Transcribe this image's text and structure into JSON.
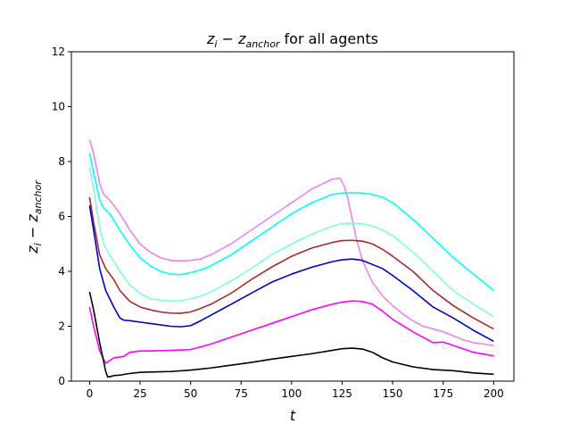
{
  "chart_data": {
    "type": "line",
    "title_parts": {
      "z_base": "z",
      "i_sub": "i",
      "minus": " − ",
      "anchor_sub": "anchor",
      "suffix": " for all agents"
    },
    "xlabel": "t",
    "ylabel_parts": {
      "z_base": "z",
      "i_sub": "i",
      "minus": " − ",
      "anchor_sub": "anchor"
    },
    "xlim": [
      -9,
      210
    ],
    "ylim": [
      0,
      12
    ],
    "xticks": [
      0,
      25,
      50,
      75,
      100,
      125,
      150,
      175,
      200
    ],
    "yticks": [
      0,
      2,
      4,
      6,
      8,
      10,
      12
    ],
    "grid": false,
    "series": [
      {
        "color": "#ee82ee",
        "x": [
          0,
          2,
          5,
          7,
          10,
          15,
          20,
          25,
          30,
          35,
          40,
          45,
          50,
          55,
          60,
          70,
          80,
          90,
          100,
          110,
          120,
          124,
          126,
          128,
          130,
          132,
          135,
          140,
          145,
          150,
          155,
          160,
          165,
          170,
          175,
          180,
          185,
          190,
          195,
          200
        ],
        "y": [
          8.8,
          8.3,
          7.2,
          6.8,
          6.6,
          6.1,
          5.5,
          5.0,
          4.7,
          4.5,
          4.4,
          4.38,
          4.4,
          4.45,
          4.6,
          5.0,
          5.5,
          6.0,
          6.5,
          7.0,
          7.35,
          7.4,
          7.1,
          6.6,
          5.9,
          5.2,
          4.4,
          3.6,
          3.1,
          2.75,
          2.45,
          2.2,
          2.0,
          1.9,
          1.8,
          1.65,
          1.5,
          1.4,
          1.35,
          1.3
        ]
      },
      {
        "color": "#00ffff",
        "x": [
          0,
          2,
          5,
          7,
          10,
          15,
          20,
          25,
          30,
          35,
          40,
          45,
          50,
          55,
          60,
          70,
          80,
          90,
          100,
          110,
          120,
          125,
          130,
          135,
          140,
          145,
          150,
          160,
          170,
          180,
          190,
          200
        ],
        "y": [
          8.3,
          7.6,
          6.6,
          6.3,
          6.1,
          5.5,
          4.95,
          4.5,
          4.2,
          4.0,
          3.9,
          3.88,
          3.95,
          4.05,
          4.2,
          4.6,
          5.1,
          5.6,
          6.1,
          6.5,
          6.8,
          6.85,
          6.87,
          6.85,
          6.8,
          6.7,
          6.5,
          5.9,
          5.2,
          4.5,
          3.9,
          3.3
        ]
      },
      {
        "color": "#7fffd4",
        "x": [
          0,
          2,
          5,
          7,
          10,
          15,
          20,
          25,
          30,
          35,
          40,
          45,
          50,
          55,
          60,
          70,
          80,
          90,
          100,
          110,
          120,
          125,
          130,
          135,
          140,
          145,
          150,
          160,
          170,
          180,
          190,
          200
        ],
        "y": [
          7.8,
          7.0,
          5.6,
          5.0,
          4.6,
          4.0,
          3.5,
          3.2,
          3.0,
          2.95,
          2.92,
          2.93,
          3.0,
          3.1,
          3.25,
          3.65,
          4.1,
          4.6,
          5.0,
          5.35,
          5.65,
          5.73,
          5.75,
          5.73,
          5.65,
          5.5,
          5.3,
          4.7,
          4.0,
          3.3,
          2.8,
          2.35
        ]
      },
      {
        "color": "#a52a2a",
        "x": [
          0,
          2,
          5,
          8,
          12,
          15,
          20,
          25,
          30,
          35,
          40,
          45,
          50,
          55,
          60,
          70,
          80,
          90,
          100,
          110,
          120,
          125,
          130,
          135,
          140,
          145,
          150,
          160,
          170,
          180,
          190,
          200
        ],
        "y": [
          6.7,
          5.8,
          4.6,
          4.1,
          3.7,
          3.3,
          2.9,
          2.7,
          2.6,
          2.52,
          2.48,
          2.47,
          2.52,
          2.65,
          2.8,
          3.2,
          3.7,
          4.15,
          4.55,
          4.85,
          5.05,
          5.12,
          5.13,
          5.1,
          5.0,
          4.8,
          4.55,
          4.0,
          3.3,
          2.75,
          2.3,
          1.9
        ]
      },
      {
        "color": "#0000cd",
        "x": [
          0,
          2,
          5,
          8,
          12,
          15,
          17,
          20,
          25,
          30,
          35,
          40,
          45,
          50,
          55,
          60,
          70,
          80,
          90,
          100,
          110,
          120,
          125,
          130,
          135,
          140,
          145,
          150,
          160,
          170,
          180,
          190,
          200
        ],
        "y": [
          6.4,
          5.5,
          4.1,
          3.3,
          2.7,
          2.3,
          2.22,
          2.2,
          2.15,
          2.1,
          2.05,
          2.0,
          1.98,
          2.02,
          2.2,
          2.4,
          2.8,
          3.2,
          3.6,
          3.9,
          4.15,
          4.35,
          4.42,
          4.45,
          4.4,
          4.25,
          4.1,
          3.85,
          3.3,
          2.7,
          2.3,
          1.85,
          1.45
        ]
      },
      {
        "color": "#ff00ff",
        "x": [
          0,
          2,
          5,
          8,
          10,
          12,
          15,
          17,
          20,
          25,
          30,
          40,
          50,
          60,
          70,
          80,
          90,
          100,
          110,
          120,
          125,
          130,
          135,
          140,
          145,
          150,
          160,
          170,
          175,
          180,
          190,
          200
        ],
        "y": [
          2.7,
          2.0,
          1.1,
          0.65,
          0.75,
          0.85,
          0.88,
          0.9,
          1.05,
          1.1,
          1.1,
          1.12,
          1.15,
          1.35,
          1.6,
          1.85,
          2.1,
          2.35,
          2.6,
          2.8,
          2.88,
          2.92,
          2.9,
          2.8,
          2.55,
          2.25,
          1.8,
          1.4,
          1.42,
          1.3,
          1.05,
          0.92
        ]
      },
      {
        "color": "#000000",
        "x": [
          0,
          2,
          5,
          8,
          9,
          10,
          12,
          15,
          20,
          25,
          30,
          40,
          50,
          60,
          70,
          80,
          90,
          100,
          110,
          120,
          125,
          130,
          135,
          140,
          145,
          150,
          160,
          170,
          180,
          190,
          200
        ],
        "y": [
          3.25,
          2.6,
          1.4,
          0.35,
          0.15,
          0.16,
          0.2,
          0.22,
          0.28,
          0.32,
          0.33,
          0.35,
          0.4,
          0.48,
          0.58,
          0.68,
          0.8,
          0.9,
          1.0,
          1.12,
          1.18,
          1.2,
          1.17,
          1.05,
          0.85,
          0.7,
          0.52,
          0.42,
          0.38,
          0.3,
          0.25
        ]
      }
    ]
  }
}
